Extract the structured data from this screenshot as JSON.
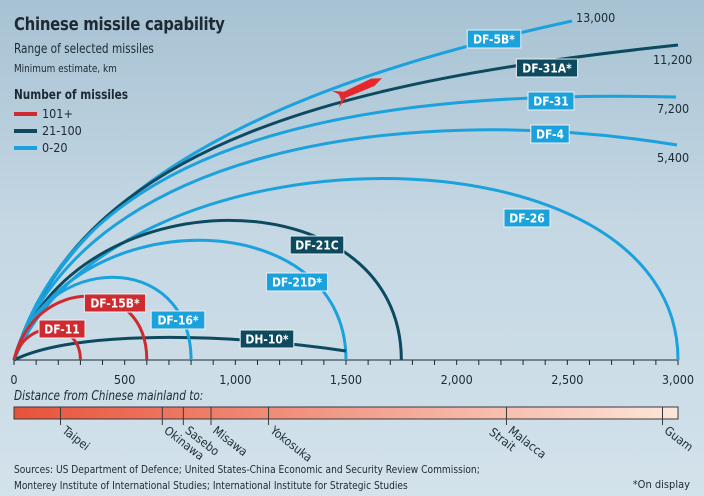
{
  "title": "Chinese missile capability",
  "subtitle": "Range of selected missiles",
  "unit_note": "Minimum estimate, km",
  "legend": {
    "title": "Number of missiles",
    "items": [
      {
        "label": "101+",
        "color": "#cf2a2f"
      },
      {
        "label": "21-100",
        "color": "#0d4a60"
      },
      {
        "label": "0-20",
        "color": "#1ba2dc"
      }
    ]
  },
  "chart_data": {
    "type": "arc",
    "xlabel": "",
    "xlim": [
      0,
      3000
    ],
    "x_ticks": [
      "0",
      "500",
      "1,000",
      "1,500",
      "2,000",
      "2,500",
      "3,000"
    ],
    "x_tick_values": [
      0,
      500,
      1000,
      1500,
      2000,
      2500,
      3000
    ],
    "series": [
      {
        "name": "DF-5B*",
        "range_km": 13000,
        "range_label": "13,000",
        "group": "0-20"
      },
      {
        "name": "DF-31A*",
        "range_km": 11200,
        "range_label": "11,200",
        "group": "21-100"
      },
      {
        "name": "DF-31",
        "range_km": 7200,
        "range_label": "7,200",
        "group": "0-20"
      },
      {
        "name": "DF-4",
        "range_km": 5400,
        "range_label": "5,400",
        "group": "0-20"
      },
      {
        "name": "DF-26",
        "range_km": 3000,
        "group": "0-20"
      },
      {
        "name": "DF-21C",
        "range_km": 1750,
        "group": "21-100"
      },
      {
        "name": "DF-21D*",
        "range_km": 1500,
        "group": "0-20"
      },
      {
        "name": "DH-10*",
        "range_km": 1500,
        "group": "21-100"
      },
      {
        "name": "DF-16*",
        "range_km": 800,
        "group": "0-20"
      },
      {
        "name": "DF-15B*",
        "range_km": 600,
        "group": "101+"
      },
      {
        "name": "DF-11",
        "range_km": 300,
        "group": "101+"
      }
    ],
    "distances_title": "Distance from Chinese mainland to:",
    "distances": [
      {
        "place": "Taipei",
        "km": 210
      },
      {
        "place": "Okinawa",
        "km": 670
      },
      {
        "place": "Sasebo",
        "km": 765
      },
      {
        "place": "Misawa",
        "km": 890
      },
      {
        "place": "Yokosuka",
        "km": 1150
      },
      {
        "place": "Malacca Strait",
        "km": 2225
      },
      {
        "place": "Guam",
        "km": 2930
      }
    ],
    "distance_bar_colors": [
      "#e8523a",
      "#fde6da"
    ]
  },
  "sources": [
    "Sources: US Department of Defence; United States-China Economic and Security Review Commission;",
    "Monterey Institute of International Studies; International Institute for Strategic Studies"
  ],
  "footnote": "*On display"
}
